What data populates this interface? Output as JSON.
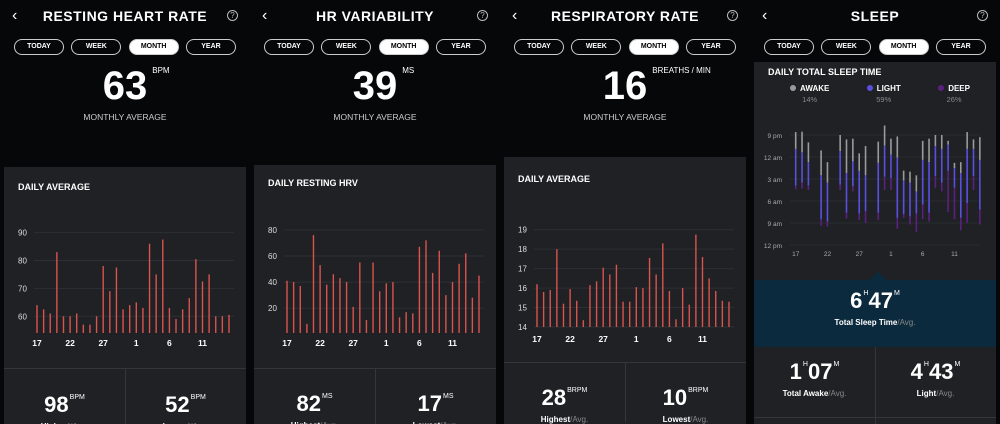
{
  "tabs": [
    "TODAY",
    "WEEK",
    "MONTH",
    "YEAR"
  ],
  "active_tab": "MONTH",
  "colors": {
    "bar": "#d9534f",
    "awake": "#9a9a9a",
    "light": "#5a4fe0",
    "deep": "#5b2082",
    "highlight_band": "#0c2a3d"
  },
  "x_tick_labels": [
    "17",
    "22",
    "27",
    "1",
    "6",
    "11"
  ],
  "panels": [
    {
      "title": "RESTING HEART RATE",
      "value": "63",
      "unit": "BPM",
      "caption": "MONTHLY AVERAGE",
      "card_title": "DAILY AVERAGE",
      "stats": [
        {
          "value": "98",
          "unit": "BPM",
          "label": "Highest",
          "suffix": "/Avg."
        },
        {
          "value": "52",
          "unit": "BPM",
          "label": "Lowest",
          "suffix": "/Avg."
        }
      ]
    },
    {
      "title": "HR VARIABILITY",
      "value": "39",
      "unit": "MS",
      "caption": "MONTHLY AVERAGE",
      "card_title": "DAILY RESTING HRV",
      "stats": [
        {
          "value": "82",
          "unit": "MS",
          "label": "Highest",
          "suffix": "/Avg."
        },
        {
          "value": "17",
          "unit": "MS",
          "label": "Lowest",
          "suffix": "/Avg."
        }
      ]
    },
    {
      "title": "RESPIRATORY RATE",
      "value": "16",
      "unit": "BREATHS / MIN",
      "caption": "MONTHLY AVERAGE",
      "card_title": "DAILY AVERAGE",
      "stats": [
        {
          "value": "28",
          "unit": "BRPM",
          "label": "Highest",
          "suffix": "/Avg."
        },
        {
          "value": "10",
          "unit": "BRPM",
          "label": "Lowest",
          "suffix": "/Avg."
        }
      ]
    },
    {
      "title": "SLEEP",
      "card_title": "DAILY TOTAL SLEEP TIME",
      "legend": [
        {
          "label": "AWAKE",
          "pct": "14%"
        },
        {
          "label": "LIGHT",
          "pct": "59%"
        },
        {
          "label": "DEEP",
          "pct": "26%"
        }
      ],
      "total": {
        "h": "6",
        "m": "47",
        "h_unit": "H",
        "m_unit": "M",
        "label": "Total Sleep Time",
        "suffix": "/Avg."
      },
      "stats": [
        {
          "h": "1",
          "m": "07",
          "label": "Total Awake",
          "suffix": "/Avg."
        },
        {
          "h": "4",
          "m": "43",
          "label": "Light",
          "suffix": "/Avg."
        }
      ]
    }
  ],
  "chart_data": [
    {
      "type": "bar",
      "title": "DAILY AVERAGE",
      "days": [
        "17",
        "18",
        "19",
        "20",
        "21",
        "22",
        "23",
        "24",
        "25",
        "26",
        "27",
        "28",
        "29",
        "30",
        "31",
        "1",
        "2",
        "3",
        "4",
        "5",
        "6",
        "7",
        "8",
        "9",
        "10",
        "11",
        "12",
        "13",
        "14",
        "15"
      ],
      "values": [
        64,
        62.5,
        61,
        83,
        60,
        60,
        61,
        57,
        57,
        60,
        78,
        69,
        77.5,
        62.5,
        64,
        65,
        63,
        86,
        75,
        87.5,
        63,
        59,
        62.5,
        66.5,
        80.5,
        72.5,
        75,
        60,
        60,
        60.5
      ],
      "yticks": [
        60,
        70,
        80,
        90
      ],
      "ylim": [
        54,
        92
      ],
      "grid": true
    },
    {
      "type": "bar",
      "title": "DAILY RESTING HRV",
      "days": [
        "17",
        "18",
        "19",
        "20",
        "21",
        "22",
        "23",
        "24",
        "25",
        "26",
        "27",
        "28",
        "29",
        "30",
        "31",
        "1",
        "2",
        "3",
        "4",
        "5",
        "6",
        "7",
        "8",
        "9",
        "10",
        "11",
        "12",
        "13",
        "14",
        "15"
      ],
      "values": [
        41,
        40,
        37,
        8,
        76,
        53,
        38,
        46,
        43,
        40,
        21,
        55,
        11,
        55,
        33,
        39,
        40,
        13,
        17,
        16,
        67,
        72,
        47,
        64,
        30,
        40,
        54,
        62,
        28,
        45
      ],
      "yticks": [
        20,
        40,
        60,
        80
      ],
      "ylim": [
        1,
        86
      ],
      "grid": true
    },
    {
      "type": "bar",
      "title": "DAILY AVERAGE",
      "days": [
        "17",
        "18",
        "19",
        "20",
        "21",
        "22",
        "23",
        "24",
        "25",
        "26",
        "27",
        "28",
        "29",
        "30",
        "31",
        "1",
        "2",
        "3",
        "4",
        "5",
        "6",
        "7",
        "8",
        "9",
        "10",
        "11",
        "12",
        "13",
        "14",
        "15"
      ],
      "values": [
        16.2,
        15.8,
        15.9,
        18,
        15.2,
        15.95,
        15.35,
        14.35,
        16.15,
        16.35,
        17.05,
        16.7,
        17.2,
        15.3,
        15.3,
        16.05,
        16,
        17.55,
        16.7,
        18.3,
        15.85,
        14.4,
        16,
        15.15,
        18.75,
        17.6,
        16.5,
        15.85,
        15.35,
        15.3
      ],
      "yticks": [
        14,
        15,
        16,
        17,
        18,
        19
      ],
      "ylim": [
        14,
        19.5
      ],
      "grid": true
    },
    {
      "type": "bar",
      "stacked": true,
      "title": "DAILY TOTAL SLEEP TIME",
      "yticks": [
        "9 pm",
        "12 am",
        "3 am",
        "6 am",
        "9 am",
        "12 pm"
      ],
      "series": [
        "AWAKE",
        "LIGHT",
        "DEEP"
      ],
      "days": [
        "17",
        "18",
        "19",
        "20",
        "21",
        "22",
        "23",
        "24",
        "25",
        "26",
        "27",
        "28",
        "29",
        "30",
        "31",
        "1",
        "2",
        "3",
        "4",
        "5",
        "6",
        "7",
        "8",
        "9",
        "10",
        "11",
        "12",
        "13",
        "14",
        "15"
      ],
      "nights": [
        [
          "20:36",
          "22:54",
          "03:54",
          "04:24"
        ],
        [
          "20:33",
          "23:22",
          "03:30",
          "04:18"
        ],
        [
          "22:00",
          "00:42",
          "03:54",
          "04:30"
        ],
        null,
        [
          "23:06",
          "02:30",
          "08:30",
          "09:24"
        ],
        [
          "00:42",
          "03:30",
          "08:48",
          "09:30"
        ],
        null,
        [
          "21:00",
          "23:12",
          "03:45",
          "04:30"
        ],
        [
          "21:36",
          "02:12",
          "07:36",
          "08:24"
        ],
        [
          "21:30",
          "00:36",
          "04:00",
          "04:42"
        ],
        [
          "23:30",
          "01:54",
          "07:42",
          "08:36"
        ],
        [
          "22:30",
          "02:30",
          "07:24",
          "09:00"
        ],
        null,
        [
          "21:54",
          "00:48",
          "07:36",
          "08:36"
        ],
        [
          "19:42",
          "22:27",
          "02:42",
          "04:30"
        ],
        [
          "21:30",
          "23:42",
          "02:54",
          "04:30"
        ],
        [
          "21:12",
          "00:06",
          "08:18",
          "09:48"
        ],
        [
          "01:51",
          "03:12",
          "07:48",
          "08:18"
        ],
        [
          "02:00",
          "03:30",
          "08:06",
          "09:12"
        ],
        [
          "02:30",
          "04:42",
          "07:42",
          "10:12"
        ],
        [
          "21:48",
          "00:24",
          "06:30",
          "08:30"
        ],
        [
          "21:30",
          "00:42",
          "07:36",
          "08:48"
        ],
        [
          "21:00",
          "22:30",
          "02:36",
          "04:12"
        ],
        [
          "21:00",
          "22:54",
          "03:30",
          "04:42"
        ],
        [
          "21:48",
          "22:18",
          "01:54",
          "07:30"
        ],
        [
          "00:48",
          "01:30",
          "04:12",
          "08:30"
        ],
        [
          "00:42",
          "02:12",
          "08:18",
          "10:00"
        ],
        [
          "20:36",
          "22:54",
          "06:18",
          "09:00"
        ],
        [
          "21:36",
          "22:54",
          "02:36",
          "04:30"
        ],
        [
          "21:18",
          "00:24",
          "07:12",
          "09:12"
        ]
      ]
    }
  ]
}
